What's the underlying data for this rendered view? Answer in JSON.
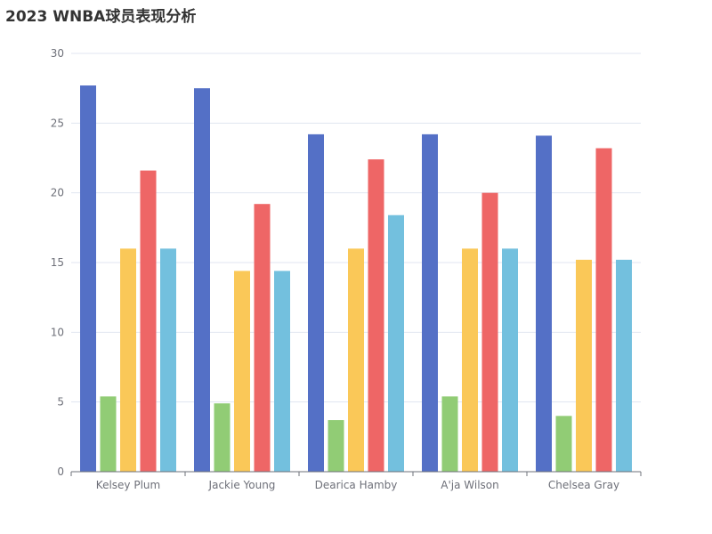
{
  "chart_data": {
    "type": "bar",
    "title": "2023 WNBA球员表现分析",
    "categories": [
      "Kelsey Plum",
      "Jackie Young",
      "Dearica Hamby",
      "A'ja Wilson",
      "Chelsea Gray"
    ],
    "series": [
      {
        "color": "#5470c6",
        "values": [
          27.7,
          27.5,
          24.2,
          24.2,
          24.1
        ]
      },
      {
        "color": "#91cc75",
        "values": [
          5.4,
          4.9,
          3.7,
          5.4,
          4.0
        ]
      },
      {
        "color": "#fac858",
        "values": [
          16.0,
          14.4,
          16.0,
          16.0,
          15.2
        ]
      },
      {
        "color": "#ee6666",
        "values": [
          21.6,
          19.2,
          22.4,
          20.0,
          23.2
        ]
      },
      {
        "color": "#73c0de",
        "values": [
          16.0,
          14.4,
          18.4,
          16.0,
          15.2
        ]
      }
    ],
    "y_ticks": [
      0,
      5,
      10,
      15,
      20,
      25,
      30
    ],
    "ylim": [
      0,
      30
    ],
    "grid": true
  }
}
